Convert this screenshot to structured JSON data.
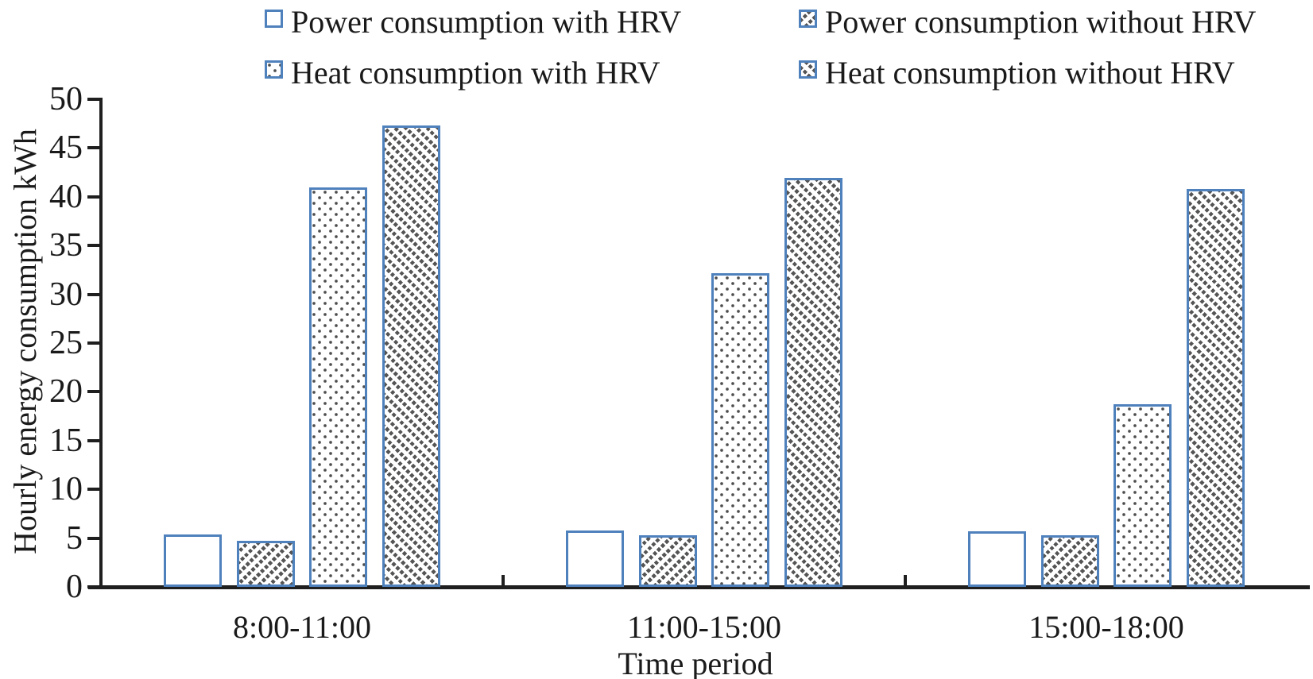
{
  "chart_data": {
    "type": "bar",
    "title": "",
    "xlabel": "Time period",
    "ylabel": "Hourly energy consumption kWh",
    "ylim": [
      0,
      50
    ],
    "ytick_step": 5,
    "yticks": [
      0,
      5,
      10,
      15,
      20,
      25,
      30,
      35,
      40,
      45,
      50
    ],
    "categories": [
      "8:00-11:00",
      "11:00-15:00",
      "15:00-18:00"
    ],
    "series": [
      {
        "name": "Power consumption with HRV",
        "pattern": "plain",
        "values": [
          5.4,
          5.8,
          5.7
        ]
      },
      {
        "name": "Power consumption without HRV",
        "pattern": "diag-up",
        "values": [
          4.7,
          5.3,
          5.3
        ]
      },
      {
        "name": "Heat consumption with HRV",
        "pattern": "dots",
        "values": [
          41.0,
          32.2,
          18.7
        ]
      },
      {
        "name": "Heat consumption without HRV",
        "pattern": "diag-down",
        "values": [
          47.3,
          41.9,
          40.8
        ]
      }
    ],
    "legend_position": "top",
    "grid": false
  },
  "colors": {
    "bar_border": "#4f81bd",
    "pattern_ink": "#555555",
    "axis": "#1f1f1f",
    "text": "#1a1a1a",
    "background": "#ffffff"
  }
}
